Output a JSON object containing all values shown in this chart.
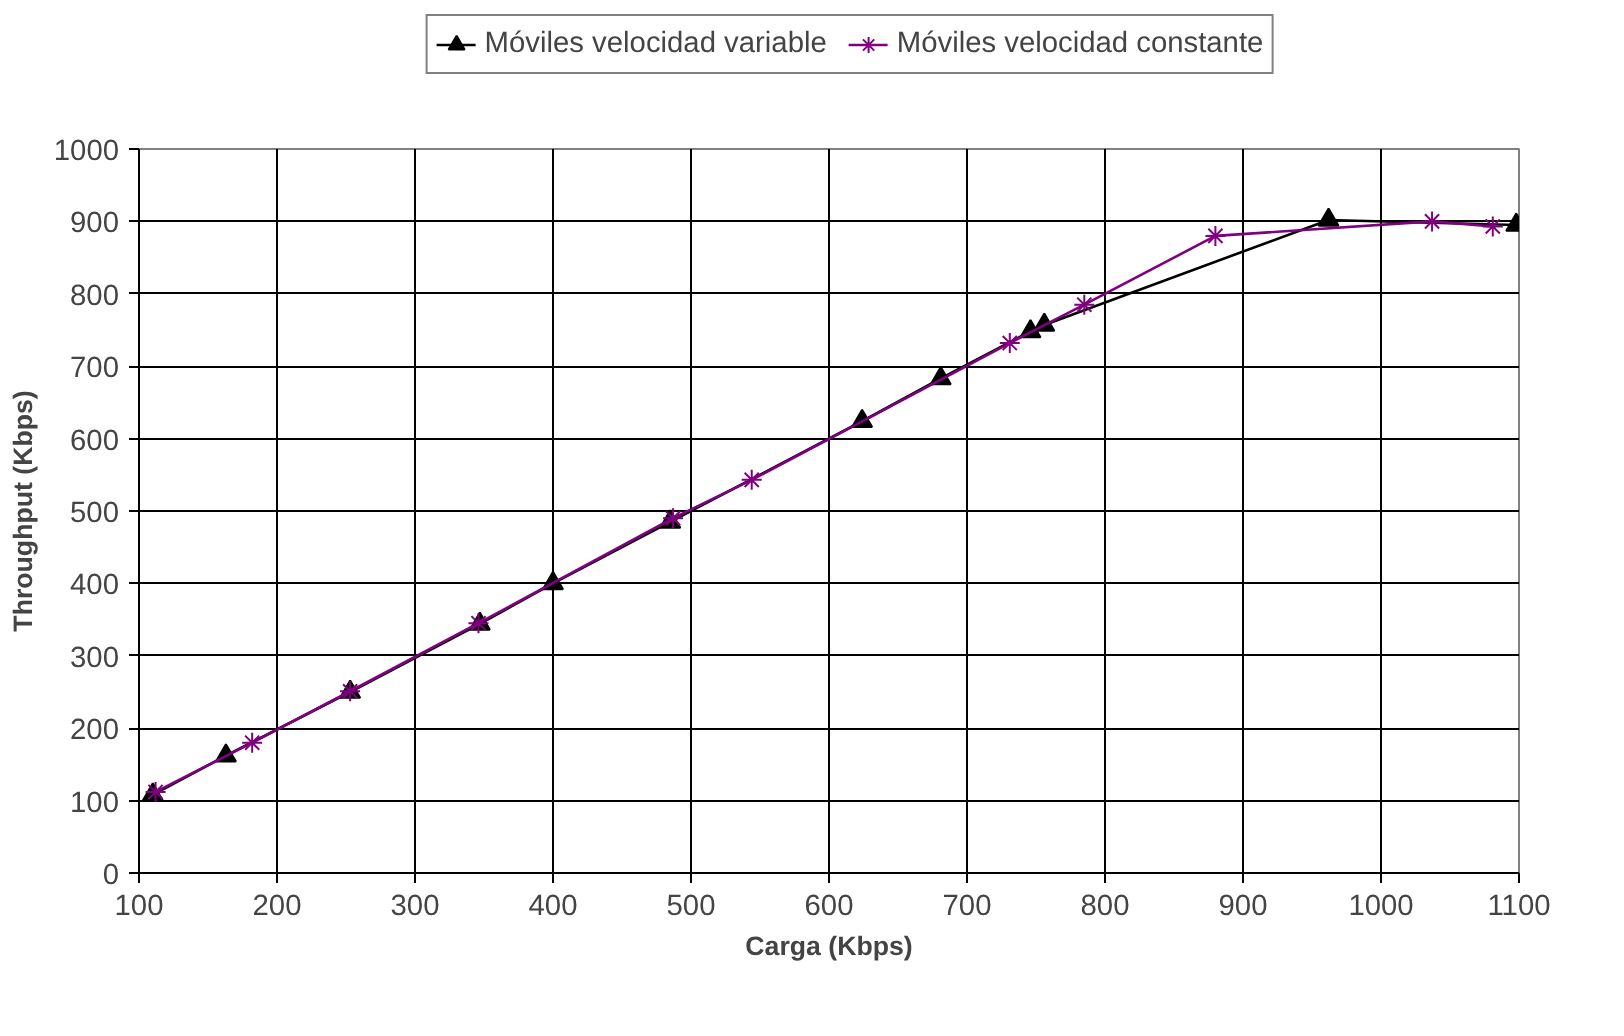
{
  "chart_data": {
    "type": "line",
    "xlabel": "Carga (Kbps)",
    "ylabel": "Throughput (Kbps)",
    "xlim": [
      100,
      1100
    ],
    "xticks": [
      100,
      200,
      300,
      400,
      500,
      600,
      700,
      800,
      900,
      1000,
      1100
    ],
    "ylim": [
      0,
      1000
    ],
    "yticks": [
      0,
      100,
      200,
      300,
      400,
      500,
      600,
      700,
      800,
      900,
      1000
    ],
    "grid": true,
    "legend": "top",
    "line_style": "solid",
    "series": [
      {
        "name": "Móviles velocidad variable",
        "color": "#000000",
        "marker": "triangle",
        "x": [
          110,
          163,
          253,
          347,
          400,
          485,
          624,
          681,
          746,
          756,
          962,
          1098
        ],
        "values": [
          108,
          162,
          250,
          344,
          400,
          485,
          624,
          683,
          748,
          757,
          902,
          895
        ]
      },
      {
        "name": "Móviles velocidad constante",
        "color": "#800080",
        "marker": "cross",
        "x": [
          112,
          182,
          253,
          346,
          487,
          544,
          731,
          785,
          880,
          1037,
          1081
        ],
        "values": [
          112,
          180,
          251,
          345,
          490,
          543,
          732,
          785,
          880,
          900,
          893
        ]
      }
    ]
  }
}
